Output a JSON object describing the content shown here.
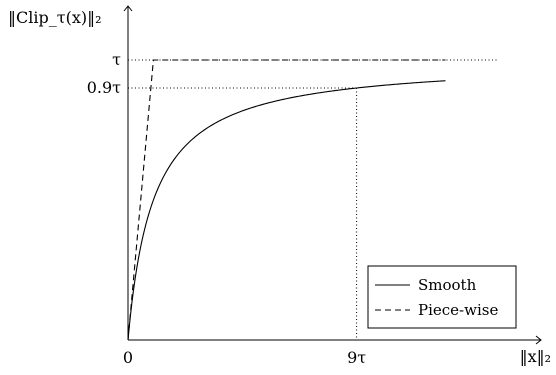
{
  "chart_data": {
    "type": "line",
    "title": "",
    "xlabel": "‖x‖₂",
    "ylabel": "‖Clip_τ(x)‖₂",
    "xlim": [
      0,
      12.5
    ],
    "ylim": [
      0,
      1.06
    ],
    "x_ticks": [
      {
        "value": 0,
        "label": "0"
      },
      {
        "value": 9,
        "label": "9τ"
      }
    ],
    "y_ticks": [
      {
        "value": 1.0,
        "label": "τ"
      },
      {
        "value": 0.9,
        "label": "0.9τ"
      }
    ],
    "reference_lines": [
      {
        "axis": "y",
        "value": 1.0,
        "style": "dotted"
      },
      {
        "axis": "y",
        "value": 0.9,
        "style": "dotted"
      },
      {
        "axis": "x",
        "value": 9,
        "style": "dotted"
      }
    ],
    "series": [
      {
        "name": "Smooth",
        "style": "solid",
        "function": "x / (1 + x)",
        "x": [
          0,
          0.25,
          0.5,
          0.75,
          1,
          1.5,
          2,
          3,
          4,
          5,
          6,
          7,
          8,
          9,
          10,
          11,
          12.5
        ],
        "y": [
          0,
          0.2,
          0.333,
          0.429,
          0.5,
          0.6,
          0.667,
          0.75,
          0.8,
          0.833,
          0.857,
          0.875,
          0.889,
          0.9,
          0.909,
          0.917,
          0.926
        ]
      },
      {
        "name": "Piece-wise",
        "style": "dashed",
        "x": [
          0,
          1,
          12.5
        ],
        "y": [
          0,
          1,
          1
        ]
      }
    ],
    "legend": {
      "position": "bottom-right",
      "entries": [
        "Smooth",
        "Piece-wise"
      ]
    },
    "grid": false,
    "colors": {
      "line": "#000000"
    }
  }
}
